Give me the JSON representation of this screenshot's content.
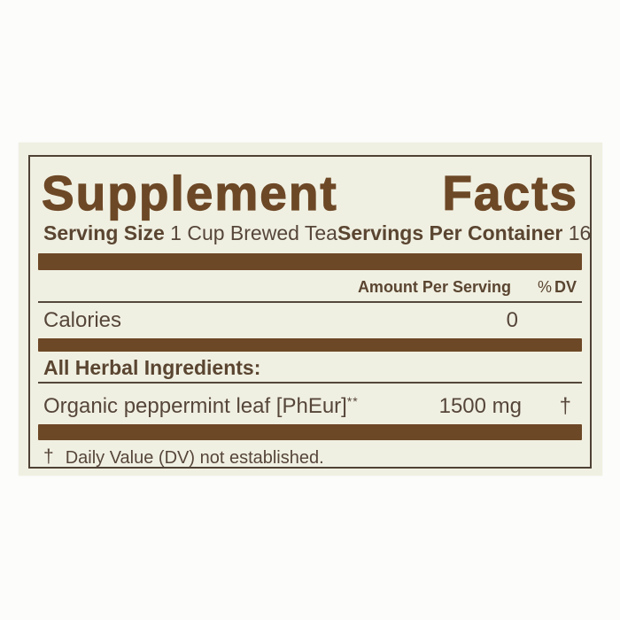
{
  "label": {
    "title": "Supplement Facts",
    "title_words": [
      "Supplement",
      "Facts"
    ],
    "serving_size_label": "Serving Size",
    "serving_size_value": "1 Cup Brewed Tea",
    "servings_per_container_label": "Servings Per Container",
    "servings_per_container_value": "16",
    "amount_per_serving": "Amount Per Serving",
    "percent_sign": "%",
    "dv_label": "DV",
    "calories_label": "Calories",
    "calories_value": "0",
    "section_heading": "All Herbal Ingredients:",
    "ingredient": {
      "name": "Organic peppermint leaf [PhEur]",
      "asterisks": "**",
      "amount": "1500 mg",
      "dv": "†"
    },
    "footnote_symbol": "†",
    "footnote_text": "Daily Value (DV) not established.",
    "colors": {
      "accent_brown": "#6d4827",
      "text_brown": "#56463a",
      "background_cream": "#f0f0e2",
      "outer_background": "#fcfcfa"
    }
  }
}
